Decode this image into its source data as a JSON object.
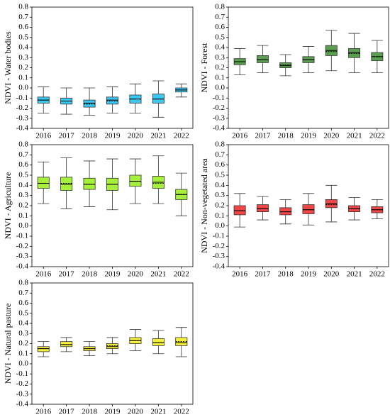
{
  "chart_data": [
    {
      "type": "box",
      "ylabel": "NDVI - Water bodies",
      "color": "#3cc6f2",
      "categories": [
        "2016",
        "2017",
        "2018",
        "2019",
        "2020",
        "2021",
        "2022"
      ],
      "low": [
        -0.25,
        -0.26,
        -0.27,
        -0.25,
        -0.25,
        -0.29,
        -0.09
      ],
      "q1": [
        -0.15,
        -0.16,
        -0.19,
        -0.16,
        -0.15,
        -0.15,
        -0.04
      ],
      "median": [
        -0.12,
        -0.13,
        -0.15,
        -0.12,
        -0.11,
        -0.11,
        -0.02
      ],
      "mean": [
        -0.12,
        -0.13,
        -0.16,
        -0.13,
        -0.11,
        -0.11,
        -0.02
      ],
      "q3": [
        -0.09,
        -0.1,
        -0.12,
        -0.09,
        -0.07,
        -0.06,
        0.0
      ],
      "high": [
        0.01,
        0.0,
        0.0,
        0.01,
        0.04,
        0.07,
        0.04
      ],
      "ylim": [
        -0.4,
        0.8
      ],
      "yticks": [
        -0.4,
        -0.3,
        -0.2,
        -0.1,
        {
          "value": 0,
          "label": "0.0"
        },
        0.1,
        0.2,
        0.3,
        0.4,
        0.5,
        0.6,
        0.7,
        0.8
      ]
    },
    {
      "type": "box",
      "ylabel": "NDVI - Forest",
      "color": "#5a9e4f",
      "categories": [
        "2016",
        "2017",
        "2018",
        "2019",
        "2020",
        "2021",
        "2022"
      ],
      "low": [
        0.13,
        0.15,
        0.12,
        0.15,
        0.17,
        0.15,
        0.15
      ],
      "q1": [
        0.23,
        0.25,
        0.2,
        0.25,
        0.32,
        0.3,
        0.27
      ],
      "median": [
        0.26,
        0.28,
        0.22,
        0.28,
        0.37,
        0.35,
        0.31
      ],
      "mean": [
        0.26,
        0.28,
        0.23,
        0.28,
        0.36,
        0.34,
        0.31
      ],
      "q3": [
        0.29,
        0.32,
        0.25,
        0.31,
        0.42,
        0.39,
        0.35
      ],
      "high": [
        0.39,
        0.42,
        0.33,
        0.41,
        0.57,
        0.54,
        0.47
      ],
      "ylim": [
        -0.4,
        0.8
      ],
      "yticks": [
        -0.4,
        -0.3,
        -0.2,
        -0.1,
        {
          "value": 0,
          "label": "0.0"
        },
        0.1,
        0.2,
        0.3,
        0.4,
        0.5,
        0.6,
        0.7,
        0.8
      ]
    },
    {
      "type": "box",
      "ylabel": "NDVI - Agriculture",
      "color": "#a6f03c",
      "categories": [
        "2016",
        "2017",
        "2018",
        "2019",
        "2020",
        "2021",
        "2022"
      ],
      "low": [
        0.22,
        0.17,
        0.19,
        0.16,
        0.22,
        0.22,
        0.1
      ],
      "q1": [
        0.37,
        0.35,
        0.36,
        0.35,
        0.39,
        0.37,
        0.26
      ],
      "median": [
        0.42,
        0.41,
        0.41,
        0.41,
        0.44,
        0.43,
        0.31
      ],
      "mean": [
        0.42,
        0.42,
        0.41,
        0.41,
        0.44,
        0.42,
        0.31
      ],
      "q3": [
        0.48,
        0.48,
        0.47,
        0.47,
        0.5,
        0.49,
        0.36
      ],
      "high": [
        0.63,
        0.67,
        0.64,
        0.66,
        0.66,
        0.69,
        0.52
      ],
      "ylim": [
        -0.4,
        0.8
      ],
      "yticks": [
        -0.4,
        -0.3,
        -0.2,
        -0.1,
        {
          "value": 0,
          "label": "0.0"
        },
        0.1,
        0.2,
        0.3,
        0.4,
        0.5,
        0.6,
        0.7,
        0.8
      ]
    },
    {
      "type": "box",
      "ylabel": "NDVI - Non-vegetated area",
      "color": "#f04848",
      "categories": [
        "2016",
        "2017",
        "2018",
        "2019",
        "2020",
        "2021",
        "2022"
      ],
      "low": [
        -0.01,
        0.06,
        0.02,
        0.01,
        0.04,
        0.06,
        0.07
      ],
      "q1": [
        0.11,
        0.14,
        0.11,
        0.12,
        0.18,
        0.14,
        0.13
      ],
      "median": [
        0.15,
        0.17,
        0.14,
        0.16,
        0.22,
        0.17,
        0.16
      ],
      "mean": [
        0.15,
        0.17,
        0.14,
        0.16,
        0.21,
        0.17,
        0.16
      ],
      "q3": [
        0.2,
        0.21,
        0.18,
        0.21,
        0.26,
        0.2,
        0.19
      ],
      "high": [
        0.32,
        0.29,
        0.26,
        0.32,
        0.4,
        0.28,
        0.26
      ],
      "ylim": [
        -0.4,
        0.8
      ],
      "yticks": [
        -0.4,
        -0.3,
        -0.2,
        -0.1,
        {
          "value": 0,
          "label": "0.0"
        },
        0.1,
        0.2,
        0.3,
        0.4,
        0.5,
        0.6,
        0.7,
        0.8
      ]
    },
    {
      "type": "box",
      "ylabel": "NDVI - Natural pasture",
      "color": "#f5f03c",
      "categories": [
        "2016",
        "2017",
        "2018",
        "2019",
        "2020",
        "2021",
        "2022"
      ],
      "low": [
        0.07,
        0.12,
        0.08,
        0.1,
        0.13,
        0.1,
        0.07
      ],
      "q1": [
        0.12,
        0.17,
        0.13,
        0.15,
        0.2,
        0.18,
        0.18
      ],
      "median": [
        0.15,
        0.19,
        0.15,
        0.17,
        0.23,
        0.21,
        0.21
      ],
      "mean": [
        0.15,
        0.19,
        0.15,
        0.18,
        0.23,
        0.21,
        0.22
      ],
      "q3": [
        0.17,
        0.22,
        0.17,
        0.2,
        0.26,
        0.25,
        0.26
      ],
      "high": [
        0.22,
        0.26,
        0.22,
        0.26,
        0.34,
        0.33,
        0.36
      ],
      "ylim": [
        -0.4,
        0.8
      ],
      "yticks": [
        -0.4,
        -0.3,
        -0.2,
        -0.1,
        {
          "value": 0,
          "label": "0.0"
        },
        0.1,
        0.2,
        0.3,
        0.4,
        0.5,
        0.6,
        0.7,
        0.8
      ]
    }
  ]
}
